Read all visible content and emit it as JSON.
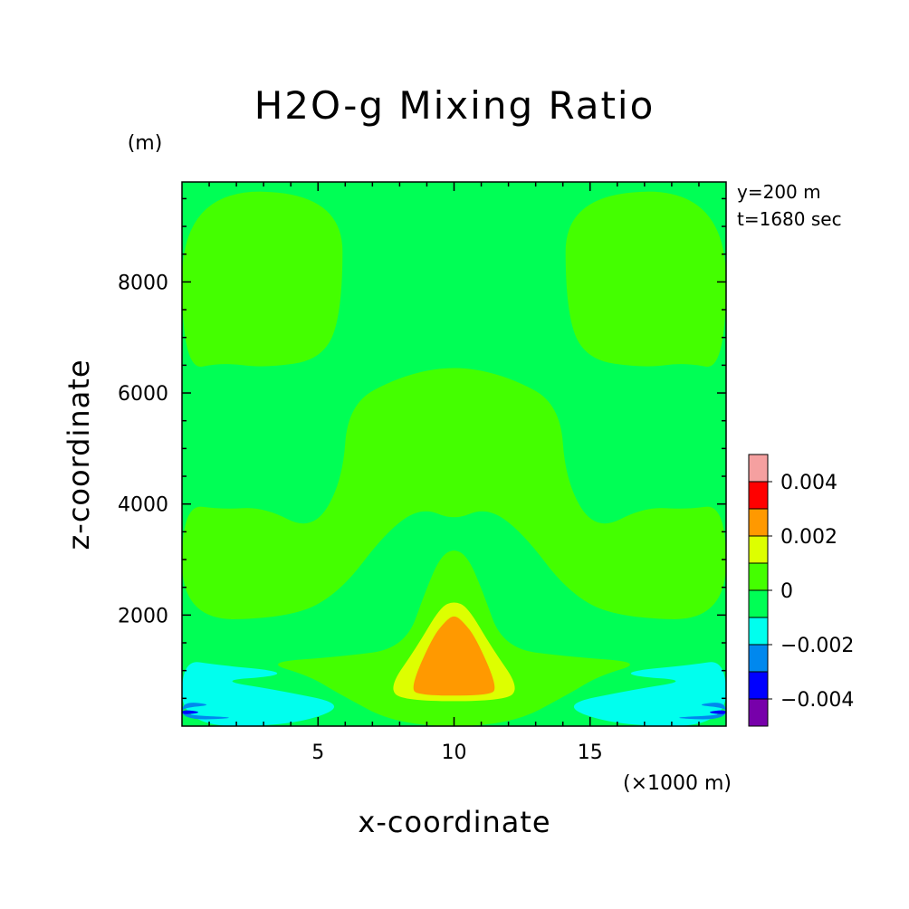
{
  "chart_data": {
    "type": "heatmap",
    "title": "H2O-g Mixing Ratio",
    "xlabel": "x-coordinate",
    "ylabel": "z-coordinate",
    "x_unit": "(×1000 m)",
    "y_unit": "(m)",
    "info": [
      "y=200 m",
      "t=1680 sec"
    ],
    "xlim": [
      0,
      20
    ],
    "ylim": [
      0,
      9800
    ],
    "x_ticks": [
      5,
      10,
      15
    ],
    "y_ticks": [
      2000,
      4000,
      6000,
      8000
    ],
    "legend": {
      "labels": [
        "0.004",
        "0.002",
        "0",
        "−0.002",
        "−0.004"
      ],
      "bins": [
        {
          "min": 0.004,
          "max": 0.005,
          "color": "#f5a0a0"
        },
        {
          "min": 0.003,
          "max": 0.004,
          "color": "#ff0000"
        },
        {
          "min": 0.002,
          "max": 0.003,
          "color": "#ff9900"
        },
        {
          "min": 0.001,
          "max": 0.002,
          "color": "#ddff00"
        },
        {
          "min": 0.0,
          "max": 0.001,
          "color": "#44ff00"
        },
        {
          "min": -0.001,
          "max": 0.0,
          "color": "#00ff55"
        },
        {
          "min": -0.002,
          "max": -0.001,
          "color": "#00ffee"
        },
        {
          "min": -0.003,
          "max": -0.002,
          "color": "#0088ee"
        },
        {
          "min": -0.004,
          "max": -0.003,
          "color": "#0000ff"
        },
        {
          "min": -0.005,
          "max": -0.004,
          "color": "#7700aa"
        }
      ]
    },
    "regions": [
      {
        "level": "0 to 0.001",
        "color": "#44ff00",
        "outline": [
          [
            0,
            9650
          ],
          [
            5.9,
            9600
          ],
          [
            5.9,
            7500
          ],
          [
            5.2,
            6600
          ],
          [
            3,
            6450
          ],
          [
            1.5,
            6550
          ],
          [
            0,
            6400
          ]
        ]
      },
      {
        "level": "0 to 0.001",
        "color": "#44ff00",
        "outline": [
          [
            20,
            9650
          ],
          [
            14.1,
            9600
          ],
          [
            14.1,
            7500
          ],
          [
            14.8,
            6600
          ],
          [
            17,
            6450
          ],
          [
            18.5,
            6550
          ],
          [
            20,
            6400
          ]
        ]
      },
      {
        "level": "0 to 0.001",
        "color": "#44ff00",
        "outline": [
          [
            6.1,
            5800
          ],
          [
            8,
            6300
          ],
          [
            10,
            6500
          ],
          [
            12,
            6300
          ],
          [
            13.9,
            5800
          ],
          [
            14.1,
            4400
          ],
          [
            15.2,
            3500
          ],
          [
            17,
            3950
          ],
          [
            18.5,
            3900
          ],
          [
            20,
            4000
          ],
          [
            20,
            1900
          ],
          [
            16,
            1950
          ],
          [
            14.2,
            2400
          ],
          [
            12.5,
            3500
          ],
          [
            11.2,
            3950
          ],
          [
            10,
            3700
          ],
          [
            8.8,
            3950
          ],
          [
            7.5,
            3500
          ],
          [
            5.8,
            2400
          ],
          [
            4,
            1950
          ],
          [
            0,
            1900
          ],
          [
            0,
            4000
          ],
          [
            1.5,
            3900
          ],
          [
            3,
            3950
          ],
          [
            4.8,
            3500
          ],
          [
            5.9,
            4400
          ]
        ]
      },
      {
        "level": "0 to 0.001",
        "color": "#44ff00",
        "outline": [
          [
            3,
            1150
          ],
          [
            5.8,
            1250
          ],
          [
            8.2,
            1400
          ],
          [
            9,
            2500
          ],
          [
            9.5,
            3050
          ],
          [
            10,
            3200
          ],
          [
            10.5,
            3050
          ],
          [
            11,
            2500
          ],
          [
            11.8,
            1400
          ],
          [
            14.2,
            1250
          ],
          [
            17,
            1150
          ],
          [
            15.3,
            900
          ],
          [
            14.3,
            600
          ],
          [
            12,
            0
          ],
          [
            8,
            0
          ],
          [
            5.7,
            600
          ],
          [
            4.7,
            900
          ]
        ]
      },
      {
        "level": "0.001 to 0.002",
        "color": "#ddff00",
        "outline": [
          [
            7.6,
            700
          ],
          [
            8.6,
            1400
          ],
          [
            9.5,
            2150
          ],
          [
            10,
            2250
          ],
          [
            10.5,
            2150
          ],
          [
            11.4,
            1400
          ],
          [
            12.4,
            700
          ],
          [
            11.9,
            450
          ],
          [
            8.1,
            450
          ]
        ]
      },
      {
        "level": "0.002 to 0.003",
        "color": "#ff9900",
        "outline": [
          [
            8.4,
            700
          ],
          [
            9.2,
            1600
          ],
          [
            9.7,
            1900
          ],
          [
            10,
            2000
          ],
          [
            10.3,
            1900
          ],
          [
            10.8,
            1600
          ],
          [
            11.6,
            700
          ],
          [
            11.3,
            550
          ],
          [
            8.7,
            550
          ]
        ]
      },
      {
        "level": "-0.002 to -0.001",
        "color": "#00ffee",
        "outline": [
          [
            0,
            1200
          ],
          [
            1.3,
            1100
          ],
          [
            3.5,
            1000
          ],
          [
            3.5,
            900
          ],
          [
            1.3,
            820
          ],
          [
            3.5,
            650
          ],
          [
            6.2,
            380
          ],
          [
            4,
            0
          ],
          [
            0,
            0
          ]
        ]
      },
      {
        "level": "-0.002 to -0.001",
        "color": "#00ffee",
        "outline": [
          [
            20,
            1200
          ],
          [
            18.7,
            1100
          ],
          [
            16.5,
            1000
          ],
          [
            16.5,
            900
          ],
          [
            18.7,
            820
          ],
          [
            16.5,
            650
          ],
          [
            13.8,
            380
          ],
          [
            16,
            0
          ],
          [
            20,
            0
          ]
        ]
      },
      {
        "level": "-0.003 to -0.002",
        "color": "#0088ee",
        "outline": [
          [
            0,
            450
          ],
          [
            1.2,
            380
          ],
          [
            0,
            330
          ],
          [
            0,
            200
          ],
          [
            2.3,
            150
          ],
          [
            0,
            100
          ]
        ]
      },
      {
        "level": "-0.003 to -0.002",
        "color": "#0088ee",
        "outline": [
          [
            20,
            450
          ],
          [
            18.8,
            380
          ],
          [
            20,
            330
          ],
          [
            20,
            200
          ],
          [
            17.7,
            150
          ],
          [
            20,
            100
          ]
        ]
      },
      {
        "level": "-0.004 to -0.003",
        "color": "#0000ff",
        "outline": [
          [
            0,
            300
          ],
          [
            0.8,
            250
          ],
          [
            0,
            200
          ]
        ]
      },
      {
        "level": "-0.004 to -0.003",
        "color": "#0000ff",
        "outline": [
          [
            20,
            300
          ],
          [
            19.2,
            250
          ],
          [
            20,
            200
          ]
        ]
      }
    ]
  }
}
